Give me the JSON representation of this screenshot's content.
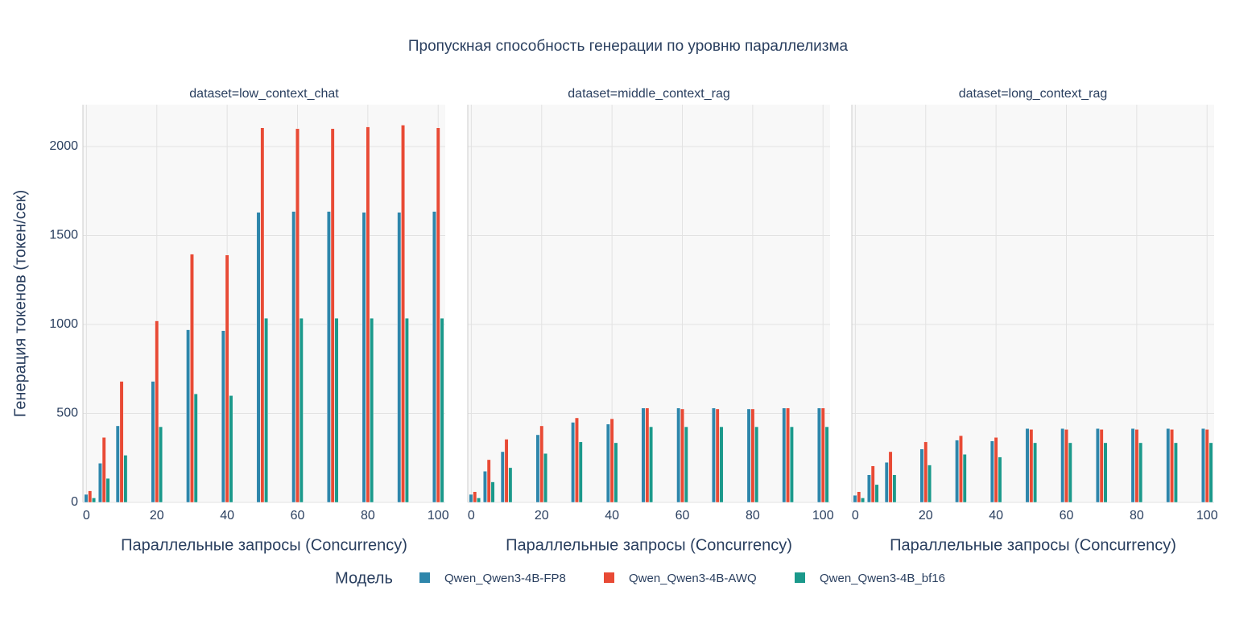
{
  "title": "Пропускная способность генерации по уровню параллелизма",
  "legend_title": "Модель",
  "chart_data": [
    {
      "type": "bar",
      "title": "dataset=low_context_chat",
      "xlabel": "Параллельные запросы (Concurrency)",
      "ylabel": "Генерация токенов (токен/сек)",
      "x": [
        1,
        5,
        10,
        20,
        30,
        40,
        50,
        60,
        70,
        80,
        90,
        100
      ],
      "series": [
        {
          "name": "Qwen_Qwen3-4B-FP8",
          "color": "#2E86AB",
          "values": [
            45,
            220,
            430,
            680,
            970,
            965,
            1630,
            1635,
            1635,
            1630,
            1630,
            1635
          ]
        },
        {
          "name": "Qwen_Qwen3-4B-AWQ",
          "color": "#E84A35",
          "values": [
            65,
            365,
            680,
            1020,
            1395,
            1390,
            2105,
            2100,
            2100,
            2110,
            2120,
            2105
          ]
        },
        {
          "name": "Qwen_Qwen3-4B_bf16",
          "color": "#1B998B",
          "values": [
            25,
            135,
            265,
            425,
            610,
            600,
            1035,
            1035,
            1035,
            1035,
            1035,
            1035
          ]
        }
      ],
      "xlim": [
        -1,
        102
      ],
      "ylim": [
        0,
        2235
      ],
      "xticks": [
        0,
        20,
        40,
        60,
        80,
        100
      ],
      "yticks": [
        0,
        500,
        1000,
        1500,
        2000
      ],
      "grid": true
    },
    {
      "type": "bar",
      "title": "dataset=middle_context_rag",
      "xlabel": "Параллельные запросы (Concurrency)",
      "x": [
        1,
        5,
        10,
        20,
        30,
        40,
        50,
        60,
        70,
        80,
        90,
        100
      ],
      "series": [
        {
          "name": "Qwen_Qwen3-4B-FP8",
          "color": "#2E86AB",
          "values": [
            45,
            175,
            285,
            380,
            450,
            440,
            530,
            530,
            530,
            525,
            530,
            530
          ]
        },
        {
          "name": "Qwen_Qwen3-4B-AWQ",
          "color": "#E84A35",
          "values": [
            60,
            240,
            355,
            430,
            475,
            470,
            530,
            525,
            525,
            525,
            530,
            530
          ]
        },
        {
          "name": "Qwen_Qwen3-4B_bf16",
          "color": "#1B998B",
          "values": [
            25,
            115,
            195,
            275,
            340,
            335,
            425,
            425,
            425,
            425,
            425,
            425
          ]
        }
      ],
      "xlim": [
        -1,
        102
      ],
      "ylim": [
        0,
        2235
      ],
      "xticks": [
        0,
        20,
        40,
        60,
        80,
        100
      ],
      "grid": true
    },
    {
      "type": "bar",
      "title": "dataset=long_context_rag",
      "xlabel": "Параллельные запросы (Concurrency)",
      "x": [
        1,
        5,
        10,
        20,
        30,
        40,
        50,
        60,
        70,
        80,
        90,
        100
      ],
      "series": [
        {
          "name": "Qwen_Qwen3-4B-FP8",
          "color": "#2E86AB",
          "values": [
            40,
            155,
            225,
            300,
            350,
            345,
            415,
            415,
            415,
            415,
            415,
            415
          ]
        },
        {
          "name": "Qwen_Qwen3-4B-AWQ",
          "color": "#E84A35",
          "values": [
            60,
            205,
            285,
            340,
            375,
            365,
            410,
            410,
            410,
            410,
            410,
            410
          ]
        },
        {
          "name": "Qwen_Qwen3-4B_bf16",
          "color": "#1B998B",
          "values": [
            25,
            100,
            155,
            210,
            270,
            255,
            335,
            335,
            335,
            335,
            335,
            335
          ]
        }
      ],
      "xlim": [
        -1,
        102
      ],
      "ylim": [
        0,
        2235
      ],
      "xticks": [
        0,
        20,
        40,
        60,
        80,
        100
      ],
      "grid": true
    }
  ]
}
